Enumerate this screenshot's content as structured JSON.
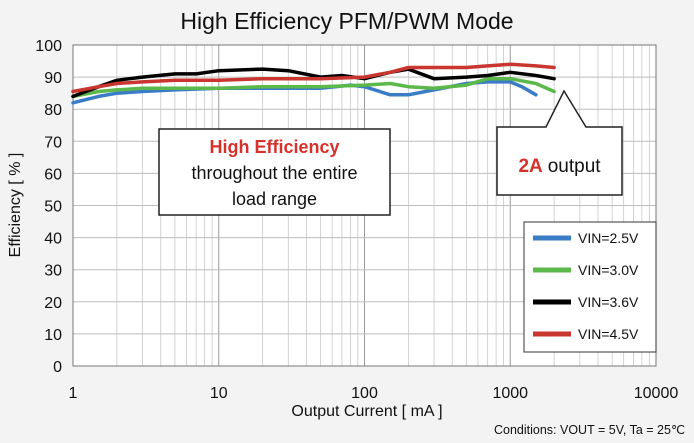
{
  "chart_data": {
    "type": "line",
    "title": "High Efficiency PFM/PWM Mode",
    "xlabel": "Output Current [ mA ]",
    "ylabel": "Efficiency [ % ]",
    "xscale": "log",
    "xlim": [
      1,
      10000
    ],
    "ylim": [
      0,
      100
    ],
    "x_ticks": [
      "1",
      "10",
      "100",
      "1000",
      "10000"
    ],
    "y_ticks": [
      "0",
      "10",
      "20",
      "30",
      "40",
      "50",
      "60",
      "70",
      "80",
      "90",
      "100"
    ],
    "grid": true,
    "legend_position": "bottom-right",
    "series": [
      {
        "name": "VIN=2.5V",
        "color": "#3a7cc6",
        "x": [
          1,
          1.5,
          2,
          3,
          5,
          10,
          20,
          50,
          80,
          100,
          150,
          200,
          300,
          500,
          700,
          1000,
          1200,
          1500
        ],
        "y": [
          82,
          84,
          85,
          85.5,
          86,
          86.5,
          86.5,
          86.5,
          87.5,
          87,
          84.5,
          84.5,
          86,
          88,
          88.5,
          88.5,
          87,
          84.5
        ]
      },
      {
        "name": "VIN=3.0V",
        "color": "#5cb84a",
        "x": [
          1,
          1.5,
          2,
          3,
          5,
          10,
          20,
          50,
          100,
          150,
          200,
          300,
          500,
          700,
          1000,
          1500,
          2000
        ],
        "y": [
          84,
          85.5,
          86,
          86.5,
          86.5,
          86.5,
          87,
          87,
          87.5,
          88,
          87,
          86.5,
          87.5,
          89.5,
          89.5,
          88,
          85.5
        ]
      },
      {
        "name": "VIN=3.6V",
        "color": "#000000",
        "x": [
          1,
          1.5,
          2,
          3,
          5,
          7,
          10,
          20,
          30,
          50,
          70,
          100,
          150,
          200,
          300,
          500,
          700,
          1000,
          1500,
          2000
        ],
        "y": [
          84,
          87,
          89,
          90,
          91,
          91,
          92,
          92.5,
          92,
          90,
          90.5,
          89.5,
          91.5,
          92.5,
          89.5,
          90,
          90.5,
          91.5,
          90.5,
          89.5
        ]
      },
      {
        "name": "VIN=4.5V",
        "color": "#c9362f",
        "x": [
          1,
          1.5,
          2,
          3,
          5,
          10,
          20,
          50,
          100,
          150,
          200,
          300,
          500,
          700,
          1000,
          1500,
          2000
        ],
        "y": [
          85.5,
          87,
          88,
          88.5,
          89,
          89,
          89.5,
          89.5,
          90,
          91.5,
          93,
          93,
          93,
          93.5,
          94,
          93.5,
          93
        ]
      }
    ],
    "annotations": [
      {
        "highlight": "High Efficiency",
        "line2": "throughout the entire",
        "line3": "load range"
      },
      {
        "highlight": "2A",
        "text": "output"
      }
    ],
    "footnote": "Conditions: VOUT = 5V, Ta = 25℃"
  }
}
